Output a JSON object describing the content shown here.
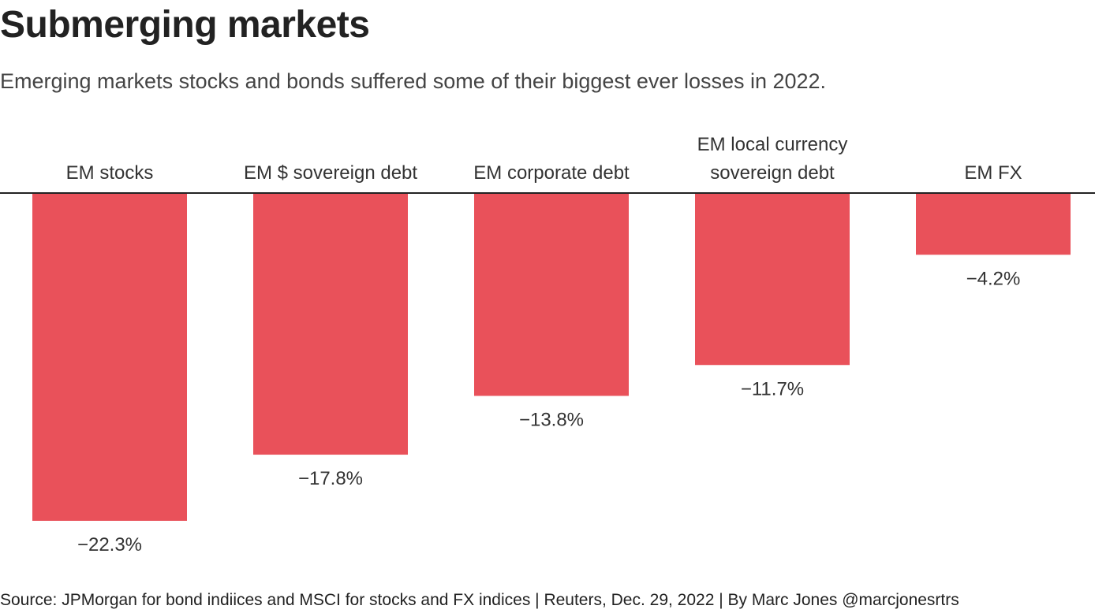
{
  "header": {
    "title": "Submerging markets",
    "subtitle": "Emerging markets stocks and bonds suffered some of their biggest ever losses in 2022."
  },
  "chart_data": {
    "type": "bar",
    "categories": [
      [
        "EM stocks"
      ],
      [
        "EM $ sovereign debt"
      ],
      [
        "EM corporate debt"
      ],
      [
        "EM local currency",
        "sovereign debt"
      ],
      [
        "EM FX"
      ]
    ],
    "values": [
      -22.3,
      -17.8,
      -13.8,
      -11.7,
      -4.2
    ],
    "value_labels": [
      "−22.3%",
      "−17.8%",
      "−13.8%",
      "−11.7%",
      "−4.2%"
    ],
    "ylim": [
      -22.3,
      0
    ],
    "bar_color": "#e9515a",
    "axis_color": "#222222",
    "title": "Submerging markets",
    "xlabel": "",
    "ylabel": ""
  },
  "footer": {
    "source": "Source: JPMorgan for bond indiices and MSCI for stocks and FX indices | Reuters, Dec. 29, 2022 | By Marc Jones @marcjonesrtrs"
  }
}
